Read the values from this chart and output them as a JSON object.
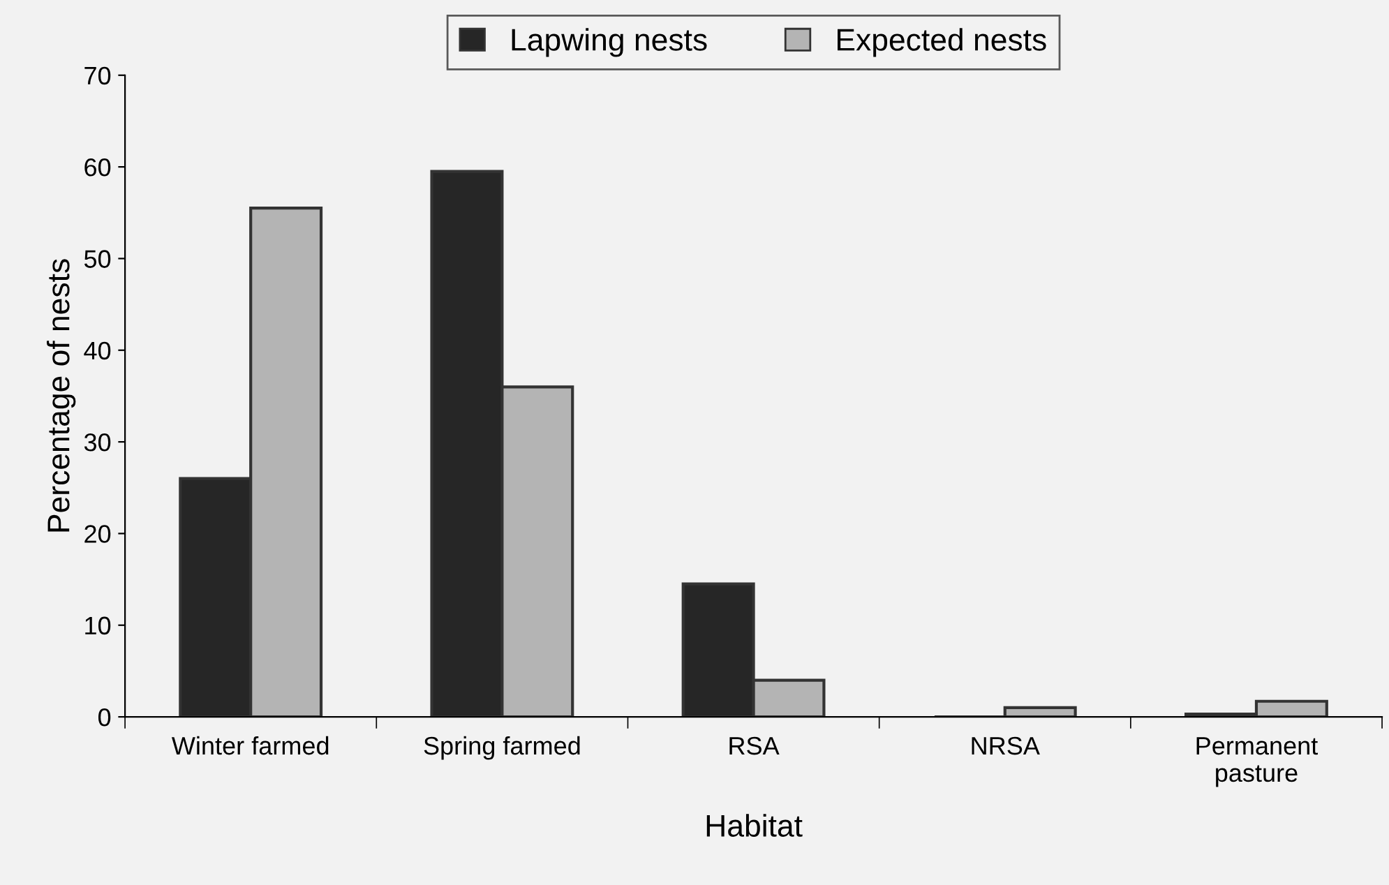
{
  "chart_data": {
    "type": "bar",
    "xlabel": "Habitat",
    "ylabel": "Percentage of nests",
    "categories": [
      "Winter farmed",
      "Spring farmed",
      "RSA",
      "NRSA",
      "Permanent\npasture"
    ],
    "series": [
      {
        "name": "Lapwing nests",
        "color": "#262626",
        "values": [
          26,
          59.5,
          14.5,
          0,
          0.3
        ]
      },
      {
        "name": "Expected nests",
        "color": "#b4b4b4",
        "values": [
          55.5,
          36,
          4,
          1,
          1.7
        ]
      }
    ],
    "ylim": [
      0,
      70
    ],
    "yticks": [
      0,
      10,
      20,
      30,
      40,
      50,
      60,
      70
    ],
    "grid": false,
    "legend": "top"
  }
}
